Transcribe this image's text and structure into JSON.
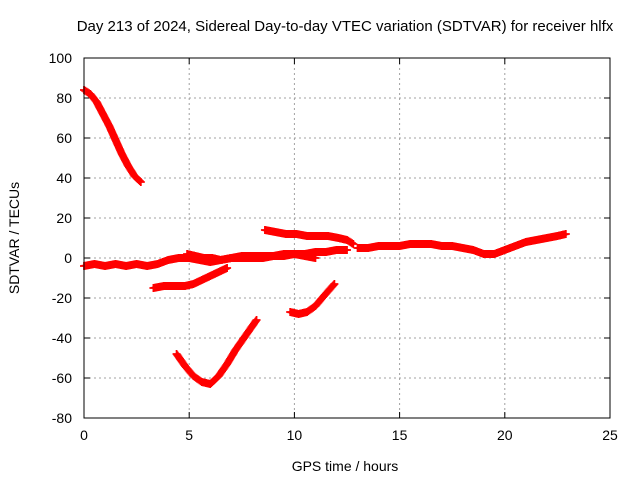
{
  "chart_data": {
    "type": "scatter",
    "title": "Day 213 of 2024, Sidereal Day-to-day VTEC variation (SDTVAR) for receiver hlfx",
    "xlabel": "GPS time / hours",
    "ylabel": "SDTVAR / TECUs",
    "xlim": [
      0,
      25
    ],
    "ylim": [
      -80,
      100
    ],
    "xticks": [
      0,
      5,
      10,
      15,
      20,
      25
    ],
    "yticks": [
      -80,
      -60,
      -40,
      -20,
      0,
      20,
      40,
      60,
      80,
      100
    ],
    "grid": true,
    "marker": "plus",
    "color": "#ff0000",
    "series": [
      {
        "x": [
          0.0,
          0.3,
          0.6,
          0.9,
          1.2,
          1.5,
          1.8,
          2.1,
          2.4,
          2.7
        ],
        "y": [
          84,
          82,
          78,
          72,
          66,
          59,
          52,
          46,
          41,
          38
        ]
      },
      {
        "x": [
          0.0,
          0.5,
          1.0,
          1.5,
          2.0,
          2.5,
          3.0,
          3.5,
          4.0,
          4.5,
          5.0,
          5.5,
          6.0,
          6.5,
          7.0,
          7.5,
          8.0,
          8.5,
          9.0,
          9.5,
          10.0,
          10.5,
          11.0,
          11.5,
          12.0,
          12.5
        ],
        "y": [
          -4,
          -3,
          -4,
          -3,
          -4,
          -3,
          -4,
          -3,
          -1,
          0,
          0,
          -1,
          -2,
          -1,
          0,
          0,
          0,
          0,
          1,
          1,
          2,
          2,
          3,
          3,
          4,
          4
        ]
      },
      {
        "x": [
          3.3,
          3.8,
          4.3,
          4.8,
          5.2,
          5.6,
          6.0,
          6.4,
          6.8
        ],
        "y": [
          -15,
          -14,
          -14,
          -14,
          -13,
          -11,
          -9,
          -7,
          -5
        ]
      },
      {
        "x": [
          4.4,
          4.8,
          5.2,
          5.6,
          6.0,
          6.4,
          6.8,
          7.2,
          7.6,
          8.0,
          8.2
        ],
        "y": [
          -48,
          -54,
          -59,
          -62,
          -63,
          -59,
          -53,
          -46,
          -40,
          -34,
          -31
        ]
      },
      {
        "x": [
          4.9,
          5.3,
          5.7,
          6.1,
          6.5,
          7.0,
          7.5,
          8.0,
          8.5,
          9.0,
          9.5,
          10.0,
          10.5,
          11.0
        ],
        "y": [
          2,
          1,
          0,
          0,
          -1,
          0,
          1,
          1,
          1,
          1,
          2,
          2,
          1,
          0
        ]
      },
      {
        "x": [
          8.6,
          9.1,
          9.6,
          10.1,
          10.6,
          11.1,
          11.6,
          12.1,
          12.5,
          12.8
        ],
        "y": [
          14,
          13,
          12,
          12,
          11,
          11,
          11,
          10,
          9,
          7
        ]
      },
      {
        "x": [
          9.8,
          10.2,
          10.6,
          11.0,
          11.4,
          11.9
        ],
        "y": [
          -27,
          -28,
          -27,
          -24,
          -19,
          -13
        ]
      },
      {
        "x": [
          13.0,
          13.5,
          14.0,
          14.5,
          15.0,
          15.5,
          16.0,
          16.5,
          17.0,
          17.5,
          18.0,
          18.5,
          19.0,
          19.5,
          20.0,
          20.5,
          21.0,
          21.5,
          22.0,
          22.5,
          22.9
        ],
        "y": [
          5,
          5,
          6,
          6,
          6,
          7,
          7,
          7,
          6,
          6,
          5,
          4,
          2,
          2,
          4,
          6,
          8,
          9,
          10,
          11,
          12
        ]
      }
    ]
  }
}
